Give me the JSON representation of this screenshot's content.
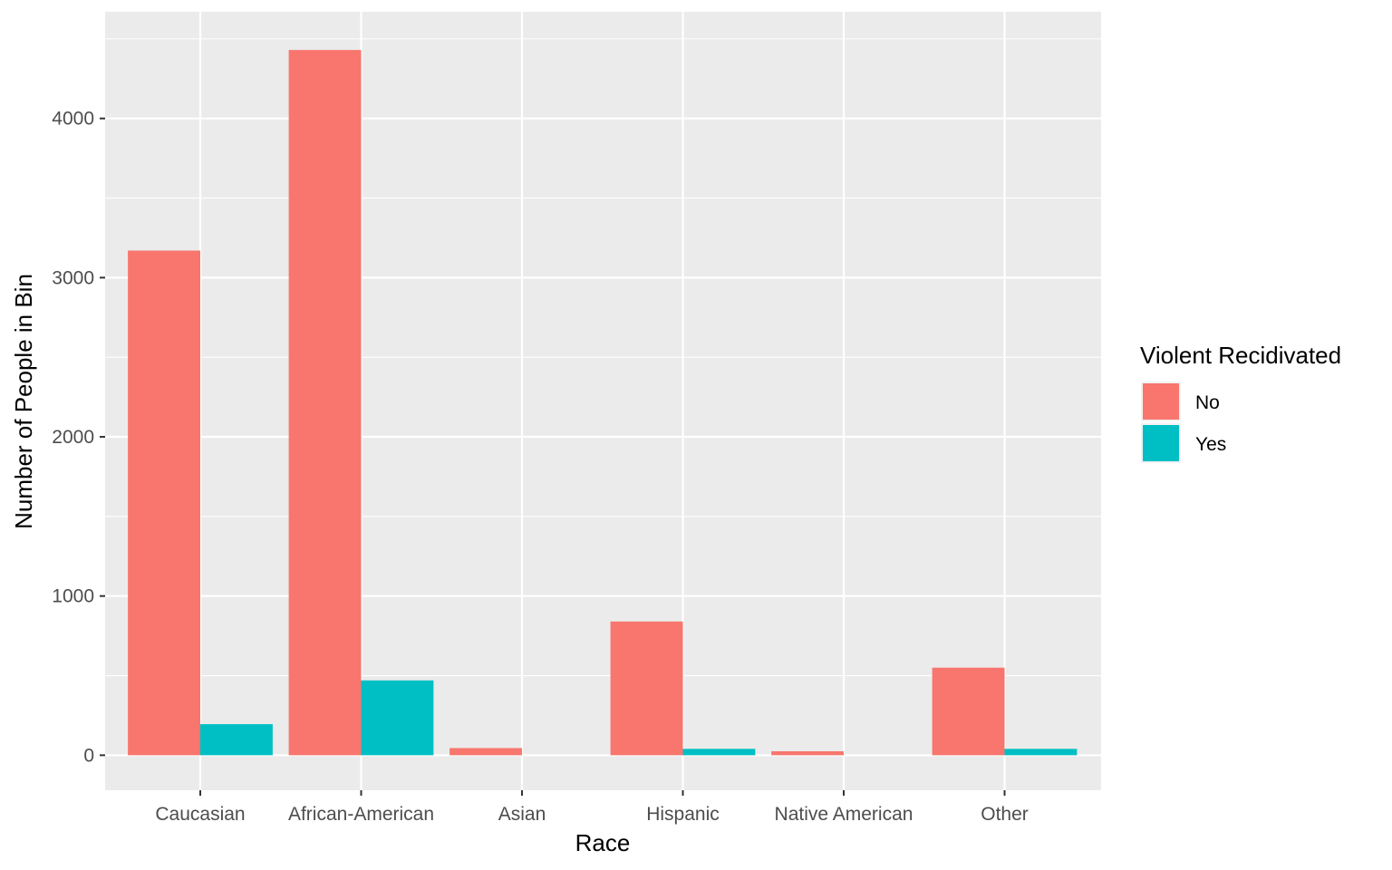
{
  "chart_data": {
    "type": "bar",
    "categories": [
      "Caucasian",
      "African-American",
      "Asian",
      "Hispanic",
      "Native American",
      "Other"
    ],
    "series": [
      {
        "name": "No",
        "values": [
          3170,
          4430,
          45,
          840,
          25,
          550
        ],
        "color": "#F8766D"
      },
      {
        "name": "Yes",
        "values": [
          195,
          470,
          0,
          40,
          0,
          40
        ],
        "color": "#00BFC4"
      }
    ],
    "xlabel": "Race",
    "ylabel": "Number of People in Bin",
    "ylim": [
      -220,
      4670
    ],
    "yticks": [
      0,
      1000,
      2000,
      3000,
      4000
    ],
    "ytick_labels": [
      "0",
      "1000",
      "2000",
      "3000",
      "4000"
    ],
    "legend": {
      "title": "Violent Recidivated",
      "placement": "right"
    },
    "grid": true,
    "panel_background": "#EBEBEB",
    "grid_color": "#FFFFFF"
  }
}
